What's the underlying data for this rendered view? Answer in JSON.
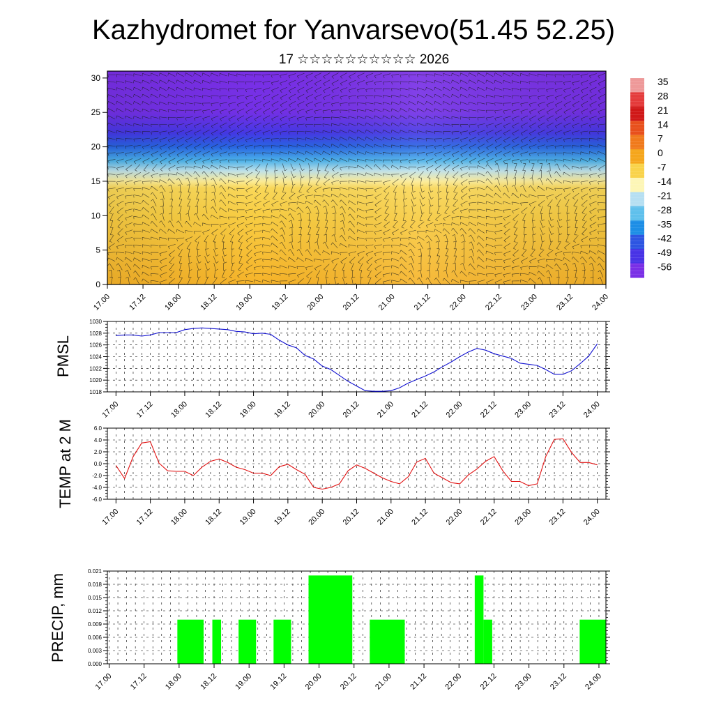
{
  "page": {
    "title": "Kazhydromet for Yanvarsevo(51.45 52.25)",
    "subtitle": "17 ☆☆☆☆☆☆☆☆☆☆ 2026"
  },
  "time_labels": [
    "17.00",
    "17.12",
    "18.00",
    "18.12",
    "19.00",
    "19.12",
    "20.00",
    "20.12",
    "21.00",
    "21.12",
    "22.00",
    "22.12",
    "23.00",
    "23.12",
    "24.00"
  ],
  "chart_data": [
    {
      "type": "heatmap",
      "name": "upper-air-temperature-wind",
      "y_ticks": [
        "0",
        "5",
        "10",
        "15",
        "20",
        "25",
        "30"
      ],
      "ylim": [
        0,
        31
      ],
      "layers": [
        {
          "y": 0,
          "value": -2
        },
        {
          "y": 5,
          "value": -4
        },
        {
          "y": 10,
          "value": -6
        },
        {
          "y": 14,
          "value": -8
        },
        {
          "y": 15,
          "value": -12
        },
        {
          "y": 16.5,
          "value": -20
        },
        {
          "y": 18,
          "value": -30
        },
        {
          "y": 20,
          "value": -40
        },
        {
          "y": 22,
          "value": -48
        },
        {
          "y": 25,
          "value": -55
        },
        {
          "y": 31,
          "value": -58
        }
      ],
      "colorbar": {
        "labels": [
          "35",
          "28",
          "21",
          "14",
          "7",
          "0",
          "-7",
          "-14",
          "-21",
          "-28",
          "-35",
          "-42",
          "-49",
          "-56"
        ],
        "colors": [
          "#ee9999",
          "#e43b3b",
          "#d01818",
          "#e8501c",
          "#f07a1c",
          "#f5a61c",
          "#f9d34a",
          "#fdf6b6",
          "#b6dff2",
          "#5fc0ec",
          "#1d8ee6",
          "#2d55e2",
          "#4833e6",
          "#7a2fe6"
        ]
      }
    },
    {
      "type": "line",
      "name": "pmsl",
      "ylabel": "PMSL",
      "y_ticks": [
        "1018",
        "1020",
        "1022",
        "1024",
        "1026",
        "1028",
        "1030"
      ],
      "ylim": [
        1018,
        1030
      ],
      "color": "#1010d0",
      "x": [
        0,
        1,
        2,
        3,
        4,
        5,
        6,
        7,
        8,
        9,
        10,
        11,
        12,
        13,
        14,
        15,
        16,
        17,
        18,
        19,
        20,
        21,
        22,
        23,
        24,
        25,
        26,
        27,
        28,
        29,
        30,
        31,
        32,
        33,
        34,
        35,
        36,
        37,
        38,
        39,
        40,
        41,
        42,
        43,
        44,
        45,
        46,
        47,
        48,
        49,
        50,
        51,
        52,
        53,
        54,
        55,
        56
      ],
      "values": [
        1027.6,
        1027.7,
        1027.7,
        1027.5,
        1027.7,
        1028.1,
        1028.1,
        1028.1,
        1028.6,
        1028.8,
        1028.9,
        1028.8,
        1028.7,
        1028.6,
        1028.3,
        1028.2,
        1027.9,
        1028.0,
        1027.8,
        1026.8,
        1026.0,
        1025.5,
        1024.2,
        1023.6,
        1022.4,
        1021.8,
        1020.8,
        1019.8,
        1019.0,
        1018.2,
        1018.1,
        1018.1,
        1018.2,
        1018.7,
        1019.5,
        1020.1,
        1020.7,
        1021.4,
        1022.3,
        1023.1,
        1024.0,
        1024.8,
        1025.4,
        1025.1,
        1024.5,
        1024.1,
        1023.7,
        1022.9,
        1022.7,
        1022.5,
        1021.8,
        1021.0,
        1021.0,
        1021.6,
        1022.8,
        1024.1,
        1026.2
      ],
      "xlim": [
        -1,
        57
      ]
    },
    {
      "type": "line",
      "name": "temp-2m",
      "ylabel": "TEMP at 2 M",
      "y_ticks": [
        "-6.0",
        "-4.0",
        "-2.0",
        "0.0",
        "2.0",
        "4.0",
        "6.0"
      ],
      "ylim": [
        -6,
        6
      ],
      "color": "#e01010",
      "x": [
        0,
        1,
        2,
        3,
        4,
        5,
        6,
        7,
        8,
        9,
        10,
        11,
        12,
        13,
        14,
        15,
        16,
        17,
        18,
        19,
        20,
        21,
        22,
        23,
        24,
        25,
        26,
        27,
        28,
        29,
        30,
        31,
        32,
        33,
        34,
        35,
        36,
        37,
        38,
        39,
        40,
        41,
        42,
        43,
        44,
        45,
        46,
        47,
        48,
        49,
        50,
        51,
        52,
        53,
        54,
        55,
        56
      ],
      "values": [
        -0.3,
        -2.5,
        1.2,
        3.5,
        3.7,
        0.1,
        -1.2,
        -1.3,
        -1.3,
        -2.0,
        -0.6,
        0.4,
        0.8,
        0.2,
        -0.6,
        -1.0,
        -1.6,
        -1.6,
        -2.0,
        -0.5,
        -0.1,
        -1.0,
        -1.8,
        -4.0,
        -4.3,
        -4.0,
        -3.4,
        -1.2,
        -0.2,
        -0.8,
        -1.6,
        -2.4,
        -3.0,
        -3.4,
        -2.2,
        0.3,
        0.9,
        -1.6,
        -2.4,
        -3.2,
        -3.4,
        -1.9,
        -0.9,
        0.4,
        1.2,
        -1.2,
        -3.0,
        -3.0,
        -3.7,
        -3.4,
        1.2,
        4.1,
        4.2,
        1.9,
        0.2,
        0.2,
        -0.2
      ],
      "xlim": [
        -1,
        57
      ]
    },
    {
      "type": "bar",
      "name": "precip",
      "ylabel": "PRECIP, mm",
      "y_ticks": [
        "0.000",
        "0.003",
        "0.006",
        "0.009",
        "0.012",
        "0.015",
        "0.018",
        "0.021"
      ],
      "ylim": [
        0,
        0.021
      ],
      "color": "#00ff00",
      "bars": [
        {
          "start": 7.8,
          "end": 10.8,
          "value": 0.01
        },
        {
          "start": 11.8,
          "end": 12.8,
          "value": 0.01
        },
        {
          "start": 14.8,
          "end": 16.8,
          "value": 0.01
        },
        {
          "start": 18.8,
          "end": 20.8,
          "value": 0.01
        },
        {
          "start": 22.8,
          "end": 27.8,
          "value": 0.02
        },
        {
          "start": 29.8,
          "end": 33.8,
          "value": 0.01
        },
        {
          "start": 41.8,
          "end": 42.8,
          "value": 0.02
        },
        {
          "start": 42.8,
          "end": 43.8,
          "value": 0.01
        },
        {
          "start": 53.8,
          "end": 56.8,
          "value": 0.01
        }
      ],
      "xlim": [
        -0.2,
        56.8
      ]
    }
  ]
}
